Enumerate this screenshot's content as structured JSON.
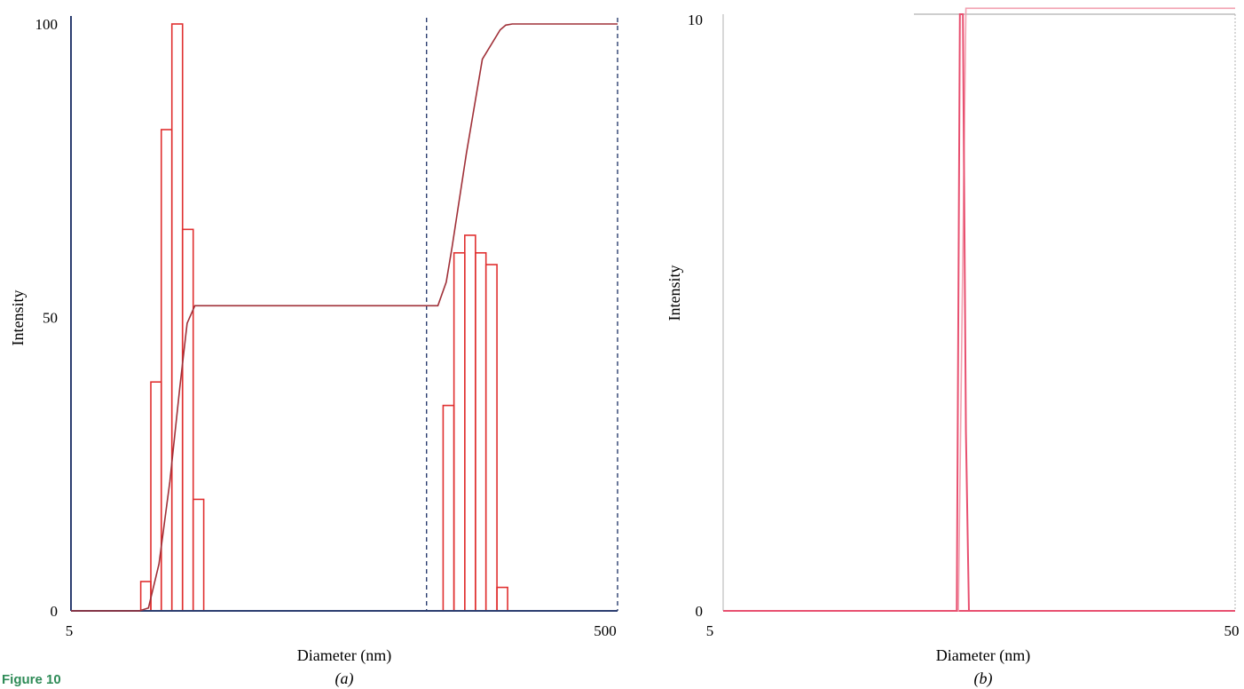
{
  "caption": "Figure 10",
  "colors": {
    "bar": "#e03030",
    "curve": "#a03038",
    "axis": "#2c3e70",
    "dash": "#2c3e70",
    "spike": "#e85070",
    "spike_light": "#f2a0b0",
    "frame": "#b0b0b0"
  },
  "chart_data": [
    {
      "panel_label": "(a)",
      "type": "bar",
      "xlabel": "Diameter (nm)",
      "ylabel": "Intensity",
      "x_tick_labels": [
        "5",
        "500"
      ],
      "y_tick_labels": [
        "0",
        "50",
        "100"
      ],
      "xlim": [
        5,
        500
      ],
      "ylim": [
        0,
        100
      ],
      "x_scale": "log",
      "grid": false,
      "bars": [
        {
          "x0": 9.0,
          "x1": 9.8,
          "value": 5
        },
        {
          "x0": 9.8,
          "x1": 10.7,
          "value": 39
        },
        {
          "x0": 10.7,
          "x1": 11.7,
          "value": 82
        },
        {
          "x0": 11.7,
          "x1": 12.8,
          "value": 100
        },
        {
          "x0": 12.8,
          "x1": 14.0,
          "value": 65
        },
        {
          "x0": 14.0,
          "x1": 15.3,
          "value": 19
        },
        {
          "x0": 115,
          "x1": 126,
          "value": 35
        },
        {
          "x0": 126,
          "x1": 138,
          "value": 61
        },
        {
          "x0": 138,
          "x1": 151,
          "value": 64
        },
        {
          "x0": 151,
          "x1": 165,
          "value": 61
        },
        {
          "x0": 165,
          "x1": 181,
          "value": 59
        },
        {
          "x0": 181,
          "x1": 198,
          "value": 4
        }
      ],
      "cumulative": {
        "x": [
          5,
          8.9,
          9.6,
          10.5,
          11.5,
          12.5,
          13.3,
          14.2,
          16,
          100,
          110,
          118,
          124,
          140,
          160,
          186,
          195,
          206,
          500
        ],
        "y": [
          0,
          0,
          0.5,
          8,
          22,
          38,
          49,
          52,
          52,
          52,
          52,
          56,
          62,
          78,
          94,
          99,
          99.8,
          100,
          100
        ]
      },
      "dashed_x": [
        100,
        500
      ]
    },
    {
      "panel_label": "(b)",
      "type": "line",
      "xlabel": "Diameter (nm)",
      "ylabel": "Intensity",
      "x_tick_labels": [
        "5",
        "50"
      ],
      "y_tick_labels": [
        "0",
        "10"
      ],
      "xlim": [
        5,
        50
      ],
      "ylim": [
        0,
        10
      ],
      "x_scale": "log",
      "grid": false,
      "distribution": {
        "x": [
          5,
          14.3,
          14.5,
          14.7,
          14.9,
          15.1,
          50
        ],
        "y": [
          0,
          0,
          10,
          10,
          3,
          0,
          0
        ]
      },
      "cumulative": {
        "x": [
          5,
          14.4,
          14.9,
          50
        ],
        "y": [
          0,
          0,
          10.1,
          10.1
        ]
      }
    }
  ]
}
